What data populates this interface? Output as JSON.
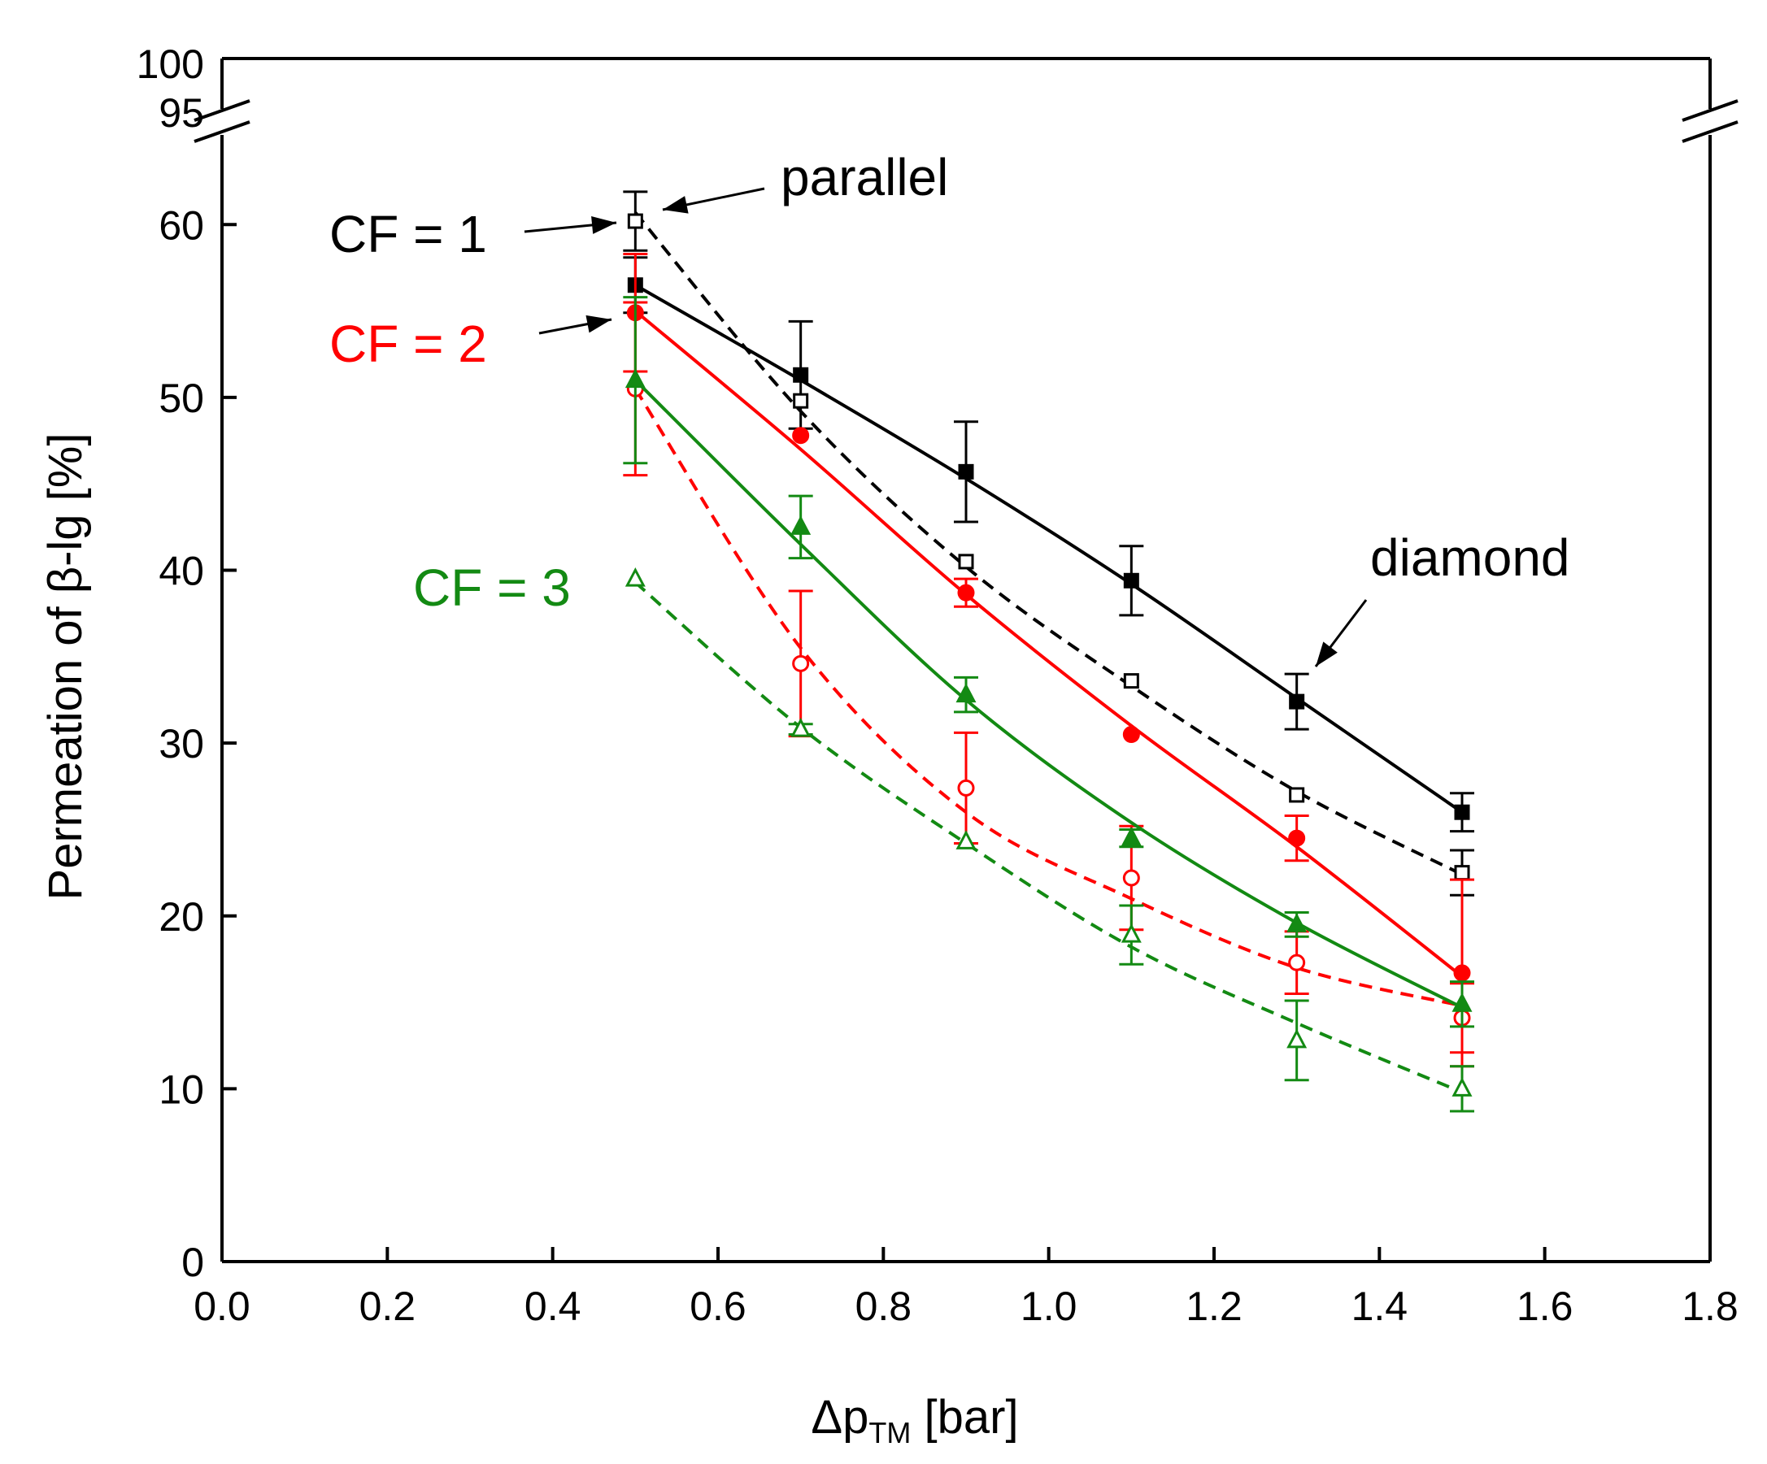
{
  "chart_data": {
    "type": "line",
    "xlabel": {
      "main": "Δp",
      "sub": "TM",
      "unit": " [bar]"
    },
    "ylabel": "Permeation of β-lg [%]",
    "xlim": [
      0.0,
      1.8
    ],
    "ylim_lower": [
      0,
      65
    ],
    "ylim_upper": [
      95,
      100
    ],
    "x_ticks": [
      "0.0",
      "0.2",
      "0.4",
      "0.6",
      "0.8",
      "1.0",
      "1.2",
      "1.4",
      "1.6",
      "1.8"
    ],
    "x_tick_values": [
      0.0,
      0.2,
      0.4,
      0.6,
      0.8,
      1.0,
      1.2,
      1.4,
      1.6,
      1.8
    ],
    "y_ticks": [
      "0",
      "10",
      "20",
      "30",
      "40",
      "50",
      "60"
    ],
    "y_tick_values": [
      0,
      10,
      20,
      30,
      40,
      50,
      60
    ],
    "y_ticks_upper": [
      "95",
      "100"
    ],
    "grid": false,
    "colors": {
      "cf1": "#000000",
      "cf2": "#ff0000",
      "cf3": "#138a13"
    },
    "annotations": [
      {
        "id": "cf1",
        "text": "CF = 1",
        "color": "#000000"
      },
      {
        "id": "cf2",
        "text": "CF = 2",
        "color": "#ff0000"
      },
      {
        "id": "cf3",
        "text": "CF = 3",
        "color": "#138a13"
      },
      {
        "id": "parallel",
        "text": "parallel",
        "color": "#000000"
      },
      {
        "id": "diamond",
        "text": "diamond",
        "color": "#000000"
      }
    ],
    "series": [
      {
        "id": "cf1-diamond",
        "color": "#000000",
        "marker": "square",
        "filled": true,
        "dashed": false,
        "x": [
          0.5,
          0.7,
          0.9,
          1.1,
          1.3,
          1.5
        ],
        "y": [
          56.5,
          51.3,
          45.7,
          39.4,
          32.4,
          26.0
        ],
        "err": [
          1.6,
          3.1,
          2.9,
          2.0,
          1.6,
          1.1
        ],
        "fit": [
          56.5,
          51.0,
          45.3,
          39.2,
          32.6,
          26.0
        ]
      },
      {
        "id": "cf1-parallel",
        "color": "#000000",
        "marker": "square",
        "filled": false,
        "dashed": true,
        "x": [
          0.5,
          0.7,
          0.9,
          1.1,
          1.3,
          1.5
        ],
        "y": [
          60.2,
          49.8,
          40.5,
          33.6,
          27.0,
          22.5
        ],
        "err": [
          1.7,
          0.0,
          0.0,
          0.0,
          0.0,
          1.3
        ],
        "fit": [
          60.7,
          49.2,
          40.2,
          33.3,
          27.2,
          22.4
        ]
      },
      {
        "id": "cf2-diamond",
        "color": "#ff0000",
        "marker": "circle",
        "filled": true,
        "dashed": false,
        "x": [
          0.5,
          0.7,
          0.9,
          1.1,
          1.3,
          1.5
        ],
        "y": [
          54.9,
          47.8,
          38.7,
          30.5,
          24.5,
          16.7
        ],
        "err": [
          3.4,
          0.0,
          0.8,
          0.0,
          1.3,
          5.4
        ],
        "fit": [
          55.0,
          47.0,
          38.6,
          31.0,
          24.0,
          16.5
        ]
      },
      {
        "id": "cf2-parallel",
        "color": "#ff0000",
        "marker": "circle",
        "filled": false,
        "dashed": true,
        "x": [
          0.5,
          0.7,
          0.9,
          1.1,
          1.3,
          1.5
        ],
        "y": [
          50.5,
          34.6,
          27.4,
          22.2,
          17.3,
          14.1
        ],
        "err": [
          5.0,
          4.2,
          3.2,
          3.0,
          1.8,
          2.0
        ],
        "fit": [
          50.5,
          35.5,
          26.0,
          21.0,
          17.0,
          14.8
        ]
      },
      {
        "id": "cf3-diamond",
        "color": "#138a13",
        "marker": "triangle",
        "filled": true,
        "dashed": false,
        "x": [
          0.5,
          0.7,
          0.9,
          1.1,
          1.3,
          1.5
        ],
        "y": [
          51.0,
          42.5,
          32.8,
          24.5,
          19.5,
          14.9
        ],
        "err": [
          4.8,
          1.8,
          1.0,
          0.5,
          0.7,
          1.3
        ],
        "fit": [
          51.0,
          41.5,
          32.5,
          25.4,
          19.6,
          14.7
        ]
      },
      {
        "id": "cf3-parallel",
        "color": "#138a13",
        "marker": "triangle",
        "filled": false,
        "dashed": true,
        "x": [
          0.5,
          0.7,
          0.9,
          1.1,
          1.3,
          1.5
        ],
        "y": [
          39.5,
          30.8,
          24.3,
          18.9,
          12.8,
          10.0
        ],
        "err": [
          0.0,
          0.3,
          0.0,
          1.7,
          2.3,
          1.3
        ],
        "fit": [
          39.3,
          30.9,
          24.2,
          18.2,
          13.8,
          9.8
        ]
      }
    ]
  }
}
